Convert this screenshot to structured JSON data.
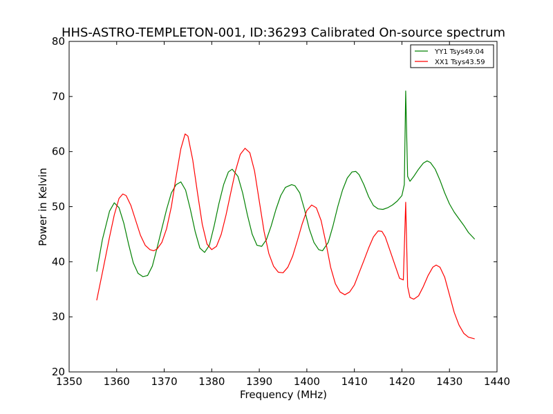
{
  "chart_data": {
    "type": "line",
    "title": "HHS-ASTRO-TEMPLETON-001, ID:36293 Calibrated On-source spectrum",
    "xlabel": "Frequency (MHz)",
    "ylabel": "Power in Kelvin",
    "xlim": [
      1350,
      1440
    ],
    "ylim": [
      20,
      80
    ],
    "xticks": [
      1350,
      1360,
      1370,
      1380,
      1390,
      1400,
      1410,
      1420,
      1430,
      1440
    ],
    "yticks": [
      20,
      30,
      40,
      50,
      60,
      70,
      80
    ],
    "grid": false,
    "legend_position": "top-right",
    "series": [
      {
        "name": "YY1 Tsys49.04",
        "color": "#008000",
        "points": [
          [
            1355.8,
            38.2
          ],
          [
            1357,
            44.0
          ],
          [
            1358.5,
            49.2
          ],
          [
            1359.5,
            50.7
          ],
          [
            1360.5,
            49.8
          ],
          [
            1361.5,
            47.0
          ],
          [
            1362.5,
            43.2
          ],
          [
            1363.5,
            39.8
          ],
          [
            1364.5,
            37.9
          ],
          [
            1365.5,
            37.3
          ],
          [
            1366.5,
            37.5
          ],
          [
            1367.5,
            39.2
          ],
          [
            1368.5,
            42.5
          ],
          [
            1369.5,
            46.0
          ],
          [
            1370.5,
            49.5
          ],
          [
            1371.5,
            52.5
          ],
          [
            1372.5,
            54.0
          ],
          [
            1373.5,
            54.5
          ],
          [
            1374.5,
            53.0
          ],
          [
            1375.5,
            49.5
          ],
          [
            1376.5,
            45.5
          ],
          [
            1377.5,
            42.5
          ],
          [
            1378.5,
            41.7
          ],
          [
            1379.5,
            43.0
          ],
          [
            1380.5,
            46.5
          ],
          [
            1381.5,
            50.5
          ],
          [
            1382.5,
            54.0
          ],
          [
            1383.5,
            56.3
          ],
          [
            1384.3,
            56.8
          ],
          [
            1385.5,
            55.5
          ],
          [
            1386.5,
            52.5
          ],
          [
            1387.5,
            48.5
          ],
          [
            1388.5,
            45.0
          ],
          [
            1389.5,
            43.0
          ],
          [
            1390.5,
            42.8
          ],
          [
            1391.5,
            44.0
          ],
          [
            1392.5,
            46.5
          ],
          [
            1393.5,
            49.5
          ],
          [
            1394.5,
            52.0
          ],
          [
            1395.5,
            53.5
          ],
          [
            1396.8,
            54.0
          ],
          [
            1397.5,
            53.8
          ],
          [
            1398.5,
            52.5
          ],
          [
            1399.5,
            49.5
          ],
          [
            1400.5,
            46.0
          ],
          [
            1401.5,
            43.5
          ],
          [
            1402.5,
            42.2
          ],
          [
            1403.3,
            42.0
          ],
          [
            1404.5,
            43.5
          ],
          [
            1405.5,
            46.5
          ],
          [
            1406.5,
            50.0
          ],
          [
            1407.5,
            53.0
          ],
          [
            1408.5,
            55.2
          ],
          [
            1409.5,
            56.3
          ],
          [
            1410.3,
            56.4
          ],
          [
            1411,
            55.8
          ],
          [
            1412,
            54.0
          ],
          [
            1413,
            51.8
          ],
          [
            1414,
            50.2
          ],
          [
            1415,
            49.6
          ],
          [
            1416,
            49.5
          ],
          [
            1417,
            49.8
          ],
          [
            1418,
            50.3
          ],
          [
            1419,
            51.0
          ],
          [
            1420,
            52.0
          ],
          [
            1420.5,
            54.0
          ],
          [
            1420.8,
            71.0
          ],
          [
            1421.2,
            55.5
          ],
          [
            1421.7,
            54.6
          ],
          [
            1422.5,
            55.5
          ],
          [
            1423.5,
            56.8
          ],
          [
            1424.5,
            57.9
          ],
          [
            1425.3,
            58.3
          ],
          [
            1426,
            58.0
          ],
          [
            1427,
            56.8
          ],
          [
            1428,
            54.8
          ],
          [
            1429,
            52.5
          ],
          [
            1430,
            50.5
          ],
          [
            1431,
            49.0
          ],
          [
            1432,
            47.8
          ],
          [
            1433,
            46.6
          ],
          [
            1434,
            45.3
          ],
          [
            1435.3,
            44.1
          ]
        ]
      },
      {
        "name": "XX1 Tsys43.59",
        "color": "#ff0000",
        "points": [
          [
            1355.8,
            33.0
          ],
          [
            1357,
            38.0
          ],
          [
            1358.5,
            44.5
          ],
          [
            1359.5,
            48.5
          ],
          [
            1360.5,
            51.5
          ],
          [
            1361.3,
            52.3
          ],
          [
            1362,
            52.0
          ],
          [
            1363,
            50.2
          ],
          [
            1364,
            47.5
          ],
          [
            1365,
            44.8
          ],
          [
            1366,
            43.0
          ],
          [
            1367,
            42.2
          ],
          [
            1367.8,
            42.0
          ],
          [
            1368.5,
            42.3
          ],
          [
            1369.5,
            43.5
          ],
          [
            1370.5,
            46.0
          ],
          [
            1371.5,
            50.0
          ],
          [
            1372.5,
            55.5
          ],
          [
            1373.5,
            60.5
          ],
          [
            1374.4,
            63.2
          ],
          [
            1375,
            62.8
          ],
          [
            1376,
            58.5
          ],
          [
            1377,
            52.5
          ],
          [
            1378,
            46.8
          ],
          [
            1379,
            43.2
          ],
          [
            1380,
            42.2
          ],
          [
            1381,
            42.8
          ],
          [
            1382,
            45.0
          ],
          [
            1383,
            48.5
          ],
          [
            1384,
            52.5
          ],
          [
            1385,
            56.5
          ],
          [
            1386,
            59.5
          ],
          [
            1387,
            60.6
          ],
          [
            1388,
            59.8
          ],
          [
            1389,
            56.5
          ],
          [
            1390,
            51.0
          ],
          [
            1391,
            45.5
          ],
          [
            1392,
            41.5
          ],
          [
            1393,
            39.2
          ],
          [
            1394,
            38.1
          ],
          [
            1395,
            38.0
          ],
          [
            1396,
            39.0
          ],
          [
            1397,
            41.0
          ],
          [
            1398,
            43.8
          ],
          [
            1399,
            46.8
          ],
          [
            1400,
            49.3
          ],
          [
            1401,
            50.3
          ],
          [
            1402,
            49.8
          ],
          [
            1403,
            47.5
          ],
          [
            1404,
            43.5
          ],
          [
            1405,
            39.0
          ],
          [
            1406,
            36.0
          ],
          [
            1407,
            34.5
          ],
          [
            1408,
            34.0
          ],
          [
            1409,
            34.5
          ],
          [
            1410,
            35.8
          ],
          [
            1411,
            38.0
          ],
          [
            1412,
            40.2
          ],
          [
            1413,
            42.5
          ],
          [
            1414,
            44.5
          ],
          [
            1415,
            45.6
          ],
          [
            1415.8,
            45.5
          ],
          [
            1416.5,
            44.5
          ],
          [
            1417.5,
            42.0
          ],
          [
            1418.5,
            39.5
          ],
          [
            1419.5,
            37.0
          ],
          [
            1420.3,
            36.7
          ],
          [
            1420.8,
            50.8
          ],
          [
            1421.2,
            35.5
          ],
          [
            1421.7,
            33.5
          ],
          [
            1422.5,
            33.2
          ],
          [
            1423.5,
            33.8
          ],
          [
            1424.5,
            35.5
          ],
          [
            1425.5,
            37.5
          ],
          [
            1426.5,
            39.0
          ],
          [
            1427.2,
            39.4
          ],
          [
            1428,
            39.0
          ],
          [
            1429,
            37.2
          ],
          [
            1430,
            34.0
          ],
          [
            1431,
            30.8
          ],
          [
            1432,
            28.5
          ],
          [
            1433,
            27.0
          ],
          [
            1434,
            26.3
          ],
          [
            1435.3,
            26.0
          ]
        ]
      }
    ]
  }
}
